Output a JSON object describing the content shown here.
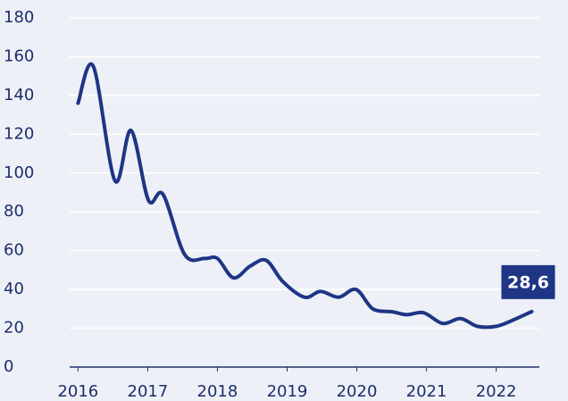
{
  "chart_data": {
    "type": "line",
    "x": [
      2016.0,
      2016.22,
      2016.53,
      2016.76,
      2017.01,
      2017.22,
      2017.53,
      2017.82,
      2018.0,
      2018.23,
      2018.47,
      2018.7,
      2018.94,
      2019.25,
      2019.48,
      2019.74,
      2019.99,
      2020.23,
      2020.51,
      2020.72,
      2020.96,
      2021.23,
      2021.49,
      2021.73,
      2022.0,
      2022.26,
      2022.51
    ],
    "series": [
      {
        "color": "#1f3585",
        "values": [
          136,
          155,
          96,
          122,
          86,
          89,
          58,
          56,
          56,
          46,
          52,
          55,
          44,
          36,
          39,
          36,
          40,
          30,
          28.5,
          27,
          28,
          22.5,
          25,
          21,
          21,
          24.5,
          28.6
        ],
        "value_labels": [
          null,
          null,
          null,
          null,
          null,
          null,
          null,
          null,
          null,
          null,
          null,
          null,
          null,
          null,
          null,
          null,
          null,
          null,
          null,
          null,
          null,
          null,
          null,
          null,
          null,
          null,
          "28,6"
        ]
      }
    ],
    "xlim": [
      2015.88,
      2022.62
    ],
    "xticks": [
      2016,
      2017,
      2018,
      2019,
      2020,
      2021,
      2022
    ],
    "ylim": [
      0,
      180
    ],
    "yticks": [
      0,
      20,
      40,
      60,
      80,
      100,
      120,
      140,
      160,
      180
    ],
    "grid": true
  }
}
